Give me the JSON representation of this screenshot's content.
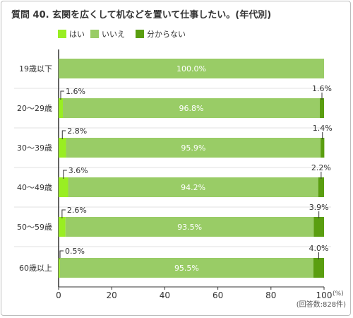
{
  "title": "質問 40. 玄関を広くして机などを置いて仕事したい。(年代別)",
  "colors": {
    "yes": "#99ee22",
    "no": "#99cc66",
    "unknown": "#5a9e10",
    "grid": "#e0e0e0",
    "axis": "#333333"
  },
  "legend": [
    {
      "label": "はい",
      "color": "#99ee22"
    },
    {
      "label": "いいえ",
      "color": "#99cc66"
    },
    {
      "label": "分からない",
      "color": "#5a9e10"
    }
  ],
  "footnote": "(回答数:828件)",
  "chart_data": {
    "type": "bar",
    "orientation": "horizontal",
    "stacked": true,
    "categories": [
      "19歳以下",
      "20〜29歳",
      "30〜39歳",
      "40〜49歳",
      "50〜59歳",
      "60歳以上"
    ],
    "series": [
      {
        "name": "はい",
        "values": [
          0,
          1.6,
          2.8,
          3.6,
          2.6,
          0.5
        ],
        "labels": [
          "",
          "1.6%",
          "2.8%",
          "3.6%",
          "2.6%",
          "0.5%"
        ]
      },
      {
        "name": "いいえ",
        "values": [
          100.0,
          96.8,
          95.9,
          94.2,
          93.5,
          95.5
        ],
        "labels": [
          "100.0%",
          "96.8%",
          "95.9%",
          "94.2%",
          "93.5%",
          "95.5%"
        ]
      },
      {
        "name": "分からない",
        "values": [
          0,
          1.6,
          1.4,
          2.2,
          3.9,
          4.0
        ],
        "labels": [
          "",
          "1.6%",
          "1.4%",
          "2.2%",
          "3.9%",
          "4.0%"
        ]
      }
    ],
    "xlim": [
      0,
      100
    ],
    "xticks": [
      "0",
      "20",
      "40",
      "60",
      "80",
      "100"
    ],
    "xunit": "(%)",
    "grid": false,
    "legend_position": "top-left"
  }
}
